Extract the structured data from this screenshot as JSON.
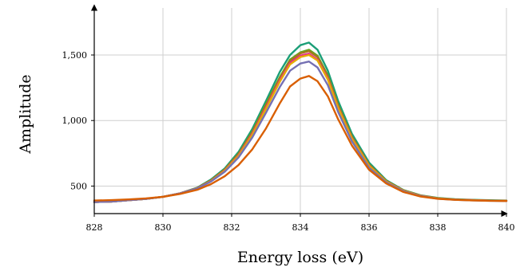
{
  "chart_data": {
    "type": "line",
    "title": "",
    "xlabel": "Energy loss (eV)",
    "ylabel": "Amplitude",
    "xlim": [
      828,
      840
    ],
    "ylim": [
      290,
      1810
    ],
    "xticks": [
      828,
      830,
      832,
      834,
      836,
      838,
      840
    ],
    "xtick_labels": [
      "828",
      "830",
      "832",
      "834",
      "836",
      "838",
      "840"
    ],
    "yticks": [
      500,
      1000,
      1500
    ],
    "ytick_labels": [
      "500",
      "1,000",
      "1,500"
    ],
    "grid": true,
    "legend": "none",
    "x": [
      828,
      828.5,
      829,
      829.5,
      830,
      830.5,
      831,
      831.4,
      831.8,
      832.2,
      832.6,
      833,
      833.4,
      833.7,
      834,
      834.25,
      834.5,
      834.8,
      835.1,
      835.5,
      836,
      836.5,
      837,
      837.5,
      838,
      838.5,
      839,
      839.5,
      840
    ],
    "series": [
      {
        "color": "#1b9e77",
        "values": [
          378,
          382,
          392,
          402,
          418,
          445,
          488,
          550,
          635,
          760,
          935,
          1150,
          1370,
          1500,
          1575,
          1595,
          1540,
          1380,
          1150,
          900,
          680,
          545,
          470,
          430,
          410,
          400,
          395,
          392,
          390
        ]
      },
      {
        "color": "#66a61e",
        "values": [
          378,
          382,
          392,
          402,
          418,
          445,
          486,
          545,
          628,
          748,
          915,
          1125,
          1330,
          1465,
          1520,
          1540,
          1495,
          1345,
          1120,
          880,
          665,
          540,
          468,
          428,
          408,
          398,
          394,
          390,
          388
        ]
      },
      {
        "color": "#a6761d",
        "values": [
          378,
          382,
          392,
          402,
          418,
          445,
          485,
          543,
          625,
          743,
          908,
          1115,
          1320,
          1455,
          1512,
          1530,
          1485,
          1335,
          1112,
          875,
          662,
          538,
          466,
          427,
          407,
          397,
          393,
          390,
          388
        ]
      },
      {
        "color": "#e7298a",
        "values": [
          378,
          382,
          392,
          402,
          418,
          445,
          484,
          540,
          620,
          735,
          898,
          1100,
          1305,
          1440,
          1495,
          1510,
          1465,
          1320,
          1100,
          866,
          656,
          535,
          465,
          426,
          406,
          397,
          393,
          389,
          387
        ]
      },
      {
        "color": "#e6ab02",
        "values": [
          378,
          382,
          392,
          402,
          418,
          444,
          483,
          538,
          617,
          730,
          890,
          1090,
          1295,
          1428,
          1484,
          1500,
          1458,
          1312,
          1095,
          862,
          654,
          534,
          464,
          425,
          406,
          396,
          392,
          389,
          387
        ]
      },
      {
        "color": "#7570b3",
        "values": [
          378,
          382,
          392,
          402,
          418,
          444,
          482,
          535,
          610,
          718,
          870,
          1060,
          1255,
          1380,
          1435,
          1450,
          1405,
          1270,
          1065,
          842,
          640,
          528,
          460,
          423,
          404,
          395,
          391,
          388,
          386
        ]
      },
      {
        "color": "#d95f02",
        "values": [
          390,
          393,
          398,
          406,
          418,
          440,
          472,
          515,
          575,
          660,
          780,
          940,
          1130,
          1260,
          1320,
          1340,
          1300,
          1185,
          1010,
          810,
          625,
          520,
          455,
          420,
          403,
          395,
          391,
          388,
          386
        ]
      }
    ]
  }
}
